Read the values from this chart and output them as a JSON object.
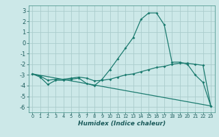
{
  "xlabel": "Humidex (Indice chaleur)",
  "background_color": "#cce8e8",
  "grid_color": "#aacccc",
  "line_color": "#1a7a6e",
  "xlim": [
    -0.5,
    23.5
  ],
  "ylim": [
    -6.5,
    3.5
  ],
  "xticks": [
    0,
    1,
    2,
    3,
    4,
    5,
    6,
    7,
    8,
    9,
    10,
    11,
    12,
    13,
    14,
    15,
    16,
    17,
    18,
    19,
    20,
    21,
    22,
    23
  ],
  "yticks": [
    -6,
    -5,
    -4,
    -3,
    -2,
    -1,
    0,
    1,
    2,
    3
  ],
  "line1_x": [
    0,
    1,
    2,
    3,
    4,
    5,
    6,
    7,
    8,
    9,
    10,
    11,
    12,
    13,
    14,
    15,
    16,
    17,
    18,
    19,
    20,
    21,
    22,
    23
  ],
  "line1_y": [
    -2.9,
    -3.2,
    -3.9,
    -3.5,
    -3.5,
    -3.4,
    -3.3,
    -3.8,
    -4.0,
    -3.4,
    -2.5,
    -1.5,
    -0.5,
    0.5,
    2.2,
    2.8,
    2.8,
    1.7,
    -1.8,
    -1.8,
    -2.0,
    -3.0,
    -3.7,
    -5.9
  ],
  "line2_x": [
    0,
    1,
    2,
    3,
    4,
    5,
    6,
    7,
    8,
    9,
    10,
    11,
    12,
    13,
    14,
    15,
    16,
    17,
    18,
    19,
    20,
    21,
    22,
    23
  ],
  "line2_y": [
    -2.9,
    -3.1,
    -3.5,
    -3.4,
    -3.4,
    -3.3,
    -3.2,
    -3.3,
    -3.55,
    -3.5,
    -3.4,
    -3.2,
    -3.0,
    -2.9,
    -2.7,
    -2.5,
    -2.3,
    -2.2,
    -2.0,
    -1.9,
    -1.9,
    -2.0,
    -2.1,
    -5.9
  ],
  "line3_x": [
    0,
    23
  ],
  "line3_y": [
    -2.9,
    -5.9
  ]
}
